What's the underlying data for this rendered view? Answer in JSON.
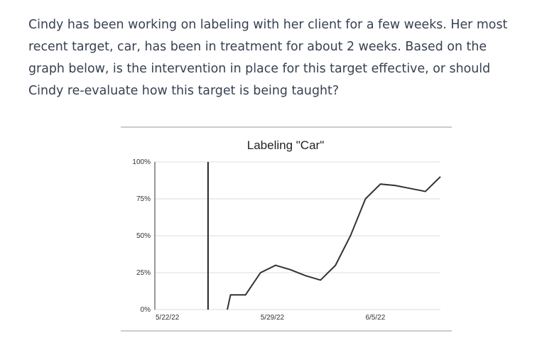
{
  "question": {
    "text": "Cindy has been working on labeling with her client for a few weeks. Her most recent target, car, has been in treatment for about 2 weeks. Based on the graph below, is the intervention in place for this target effective, or should Cindy re-evaluate how this target is being taught?"
  },
  "colors": {
    "text": "#374151",
    "line": "#333333",
    "grid": "#dddddd",
    "divider": "#bbbbbb"
  },
  "chart_data": {
    "type": "line",
    "title": "Labeling \"Car\"",
    "xlabel": "",
    "ylabel": "",
    "ylim": [
      0,
      100
    ],
    "yticks": [
      "0%",
      "25%",
      "50%",
      "75%",
      "100%"
    ],
    "yticks_values": [
      0,
      25,
      50,
      75,
      100
    ],
    "xtick_labels": [
      "5/22/22",
      "5/29/22",
      "6/5/22"
    ],
    "phase_change_line": true,
    "grid": true,
    "series": [
      {
        "x": [
          "5/22/22",
          "5/23/22",
          "5/24/22",
          "5/25/22",
          "5/26/22",
          "5/27/22",
          "5/28/22",
          "5/29/22",
          "5/30/22",
          "5/31/22",
          "6/1/22",
          "6/2/22",
          "6/3/22",
          "6/4/22",
          "6/5/22",
          "6/6/22",
          "6/7/22",
          "6/8/22",
          "6/9/22",
          "6/10/22"
        ],
        "values": [
          0,
          0,
          0,
          0,
          0,
          10,
          10,
          25,
          30,
          27,
          23,
          20,
          30,
          50,
          75,
          85,
          84,
          82,
          80,
          90
        ]
      }
    ]
  }
}
